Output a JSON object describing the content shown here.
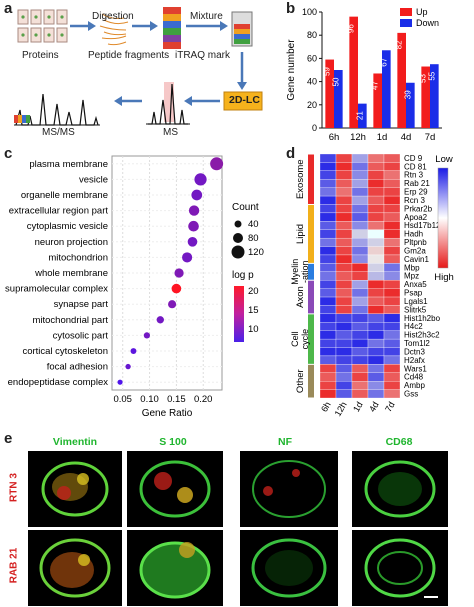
{
  "panel_labels": {
    "a": "a",
    "b": "b",
    "c": "c",
    "d": "d",
    "e": "e"
  },
  "panel_a": {
    "proteins": "Proteins",
    "digestion": "Digestion",
    "peptide_fragments": "Peptide fragments",
    "mixture": "Mixture",
    "itraq": "iTRAQ mark",
    "lc": "2D-LC",
    "ms": "MS",
    "msms": "MS/MS"
  },
  "chart_data": [
    {
      "type": "bar",
      "categories": [
        "6h",
        "12h",
        "1d",
        "4d",
        "7d"
      ],
      "series": [
        {
          "name": "Up",
          "color": "#f21c1c",
          "values": [
            59,
            96,
            47,
            82,
            53
          ]
        },
        {
          "name": "Down",
          "color": "#1a2de8",
          "values": [
            50,
            21,
            67,
            39,
            55
          ]
        }
      ],
      "ylabel": "Gene number",
      "ylim": [
        0,
        100
      ],
      "yticks": [
        0,
        20,
        40,
        60,
        80,
        100
      ]
    },
    {
      "type": "scatter",
      "categories": [
        "plasma membrane",
        "vesicle",
        "organelle membrane",
        "extracellular region part",
        "cytoplasmic vesicle",
        "neuron projection",
        "mitochondrion",
        "whole membrane",
        "supramolecular complex",
        "synapse part",
        "mitochondrial part",
        "cytosolic part",
        "cortical cytoskeleton",
        "focal adhesion",
        "endopeptidase complex"
      ],
      "gene_ratio": [
        0.225,
        0.195,
        0.188,
        0.183,
        0.182,
        0.18,
        0.17,
        0.155,
        0.15,
        0.142,
        0.12,
        0.095,
        0.07,
        0.06,
        0.045
      ],
      "count": [
        120,
        110,
        90,
        85,
        88,
        75,
        82,
        70,
        75,
        55,
        45,
        30,
        25,
        18,
        15
      ],
      "log_p": [
        12,
        10,
        10,
        11,
        11,
        10,
        10,
        11,
        22,
        11,
        10,
        10,
        8,
        9,
        7
      ],
      "xlabel": "Gene Ratio",
      "xticks": [
        "0.05",
        "0.10",
        "0.15",
        "0.20"
      ],
      "xlim": [
        0.03,
        0.235
      ],
      "legend_count_title": "Count",
      "legend_count_items": [
        "40",
        "80",
        "120"
      ],
      "legend_logp_title": "log p",
      "legend_logp_items": [
        "20",
        "15",
        "10"
      ]
    },
    {
      "type": "heatmap",
      "columns": [
        "6h",
        "12h",
        "1d",
        "4d",
        "7d"
      ],
      "legend_low": "Low",
      "legend_high": "High",
      "groups": [
        {
          "name": "Exosome",
          "color": "#e82a2a",
          "rows": [
            "CD 9",
            "CD 81",
            "Rtn 3",
            "Rab 21",
            "Erp 29",
            "Rcn 3"
          ]
        },
        {
          "name": "Lipid",
          "color": "#f2b01a",
          "rows": [
            "Prkar2b",
            "Apoa2",
            "Hsd17b12",
            "Hadh",
            "Pltpnb",
            "Gm2a",
            "Cavin1"
          ]
        },
        {
          "name": "Myelin -ation",
          "color": "#2a7de0",
          "rows": [
            "Mbp",
            "Mpz"
          ]
        },
        {
          "name": "Axon",
          "color": "#8a4ab8",
          "rows": [
            "Anxa5",
            "Psap",
            "Lgals1",
            "Slitrk5"
          ]
        },
        {
          "name": "Cell cycle",
          "color": "#4db84a",
          "rows": [
            "Hist1h2bo",
            "H4c2",
            "Hist2h3c2",
            "Tom1l2",
            "Dctn3",
            "H2afx"
          ]
        },
        {
          "name": "Other",
          "color": "#9a8a5a",
          "rows": [
            "Wars1",
            "Cd48",
            "Ambp",
            "Gss"
          ]
        }
      ],
      "values": [
        [
          0.1,
          0.9,
          0.3,
          0.8,
          0.85
        ],
        [
          0.05,
          0.95,
          0.2,
          0.85,
          0.9
        ],
        [
          0.1,
          0.9,
          0.25,
          0.9,
          0.8
        ],
        [
          0.15,
          0.85,
          0.3,
          0.95,
          0.85
        ],
        [
          0.2,
          0.8,
          0.2,
          0.9,
          0.9
        ],
        [
          0.05,
          0.9,
          0.3,
          0.85,
          0.95
        ],
        [
          0.1,
          0.9,
          0.2,
          0.9,
          0.9
        ],
        [
          0.05,
          0.95,
          0.15,
          0.9,
          0.85
        ],
        [
          0.15,
          0.85,
          0.25,
          0.8,
          0.95
        ],
        [
          0.1,
          0.9,
          0.4,
          0.5,
          0.95
        ],
        [
          0.2,
          0.85,
          0.3,
          0.4,
          0.8
        ],
        [
          0.05,
          0.9,
          0.2,
          0.6,
          0.9
        ],
        [
          0.1,
          0.95,
          0.25,
          0.55,
          0.85
        ],
        [
          0.15,
          0.9,
          0.95,
          0.4,
          0.2
        ],
        [
          0.2,
          0.85,
          0.9,
          0.35,
          0.25
        ],
        [
          0.1,
          0.9,
          0.3,
          0.95,
          0.9
        ],
        [
          0.15,
          0.85,
          0.2,
          0.9,
          0.95
        ],
        [
          0.05,
          0.9,
          0.3,
          0.85,
          0.9
        ],
        [
          0.1,
          0.9,
          0.2,
          0.95,
          0.85
        ],
        [
          0.05,
          0.1,
          0.1,
          0.15,
          0.05
        ],
        [
          0.1,
          0.05,
          0.15,
          0.1,
          0.1
        ],
        [
          0.05,
          0.15,
          0.1,
          0.05,
          0.2
        ],
        [
          0.1,
          0.1,
          0.05,
          0.2,
          0.15
        ],
        [
          0.05,
          0.05,
          0.15,
          0.1,
          0.1
        ],
        [
          0.15,
          0.1,
          0.1,
          0.05,
          0.2
        ],
        [
          0.9,
          0.15,
          0.85,
          0.2,
          0.9
        ],
        [
          0.85,
          0.2,
          0.9,
          0.15,
          0.85
        ],
        [
          0.9,
          0.1,
          0.8,
          0.25,
          0.9
        ],
        [
          0.95,
          0.15,
          0.85,
          0.2,
          0.8
        ]
      ]
    }
  ],
  "panel_e": {
    "columns": [
      "Vimentin",
      "S 100",
      "NF",
      "CD68"
    ],
    "rows": [
      "RTN 3",
      "RAB 21"
    ]
  },
  "colors": {
    "up": "#f21c1c",
    "down": "#1a2de8",
    "micro_green": "#1fb52e",
    "row_red": "#d42020"
  }
}
